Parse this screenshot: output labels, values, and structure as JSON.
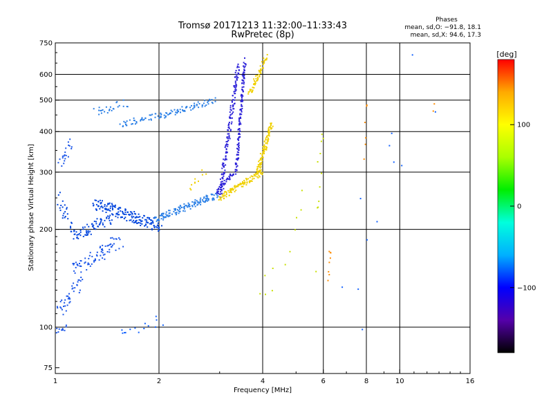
{
  "header": {
    "title": "Tromsø 20171213 11:32:00–11:33:43",
    "subtitle": "RwPretec (8p)"
  },
  "phases": {
    "heading": "Phases",
    "line_o": "mean, sd,O: −91.8, 18.1",
    "line_x": "mean, sd,X:  94.6, 17.3"
  },
  "chart_data": {
    "type": "scatter",
    "xlabel": "Frequency [MHz]",
    "ylabel": "Stationary phase Virtual Height [km]",
    "xscale": "log",
    "yscale": "log",
    "xlim": [
      1,
      16
    ],
    "ylim": [
      72,
      750
    ],
    "xticks": [
      1,
      2,
      4,
      6,
      8,
      10,
      16
    ],
    "xtick_labels": [
      "1",
      "2",
      "4",
      "6",
      "8",
      "10",
      "16"
    ],
    "x_gridlines": [
      2,
      4,
      6,
      8,
      10
    ],
    "yticks": [
      75,
      100,
      200,
      300,
      400,
      500,
      600,
      750
    ],
    "ytick_labels": [
      "75",
      "100",
      "200",
      "300",
      "400",
      "500",
      "600",
      "750"
    ],
    "y_gridlines": [
      100,
      200,
      300,
      400,
      500,
      600
    ],
    "grid": true,
    "colorbar": {
      "label": "[deg]",
      "range": [
        -180,
        180
      ],
      "ticks": [
        100,
        0,
        -100
      ],
      "tick_labels": [
        "100",
        "0",
        "−100"
      ],
      "colors": [
        "#000000",
        "#5500aa",
        "#0000ff",
        "#00b0ff",
        "#00ffdd",
        "#00ee00",
        "#aaff00",
        "#ffff00",
        "#ffaa00",
        "#ff0000"
      ]
    },
    "series": [
      {
        "color": "#0044dd",
        "segments": [
          {
            "f0": 1.12,
            "f1": 1.45,
            "h0": 190,
            "h1": 215,
            "n": 70,
            "jf": 0.03,
            "jh": 0.04
          },
          {
            "f0": 1.3,
            "f1": 2.0,
            "h0": 240,
            "h1": 205,
            "n": 170,
            "jf": 0.02,
            "jh": 0.04
          },
          {
            "f0": 1.02,
            "f1": 1.12,
            "h0": 250,
            "h1": 205,
            "n": 25,
            "jf": 0.02,
            "jh": 0.06
          }
        ]
      },
      {
        "color": "#1a55e8",
        "segments": [
          {
            "f0": 1.02,
            "f1": 1.18,
            "h0": 110,
            "h1": 140,
            "n": 40,
            "jf": 0.025,
            "jh": 0.05
          },
          {
            "f0": 1.12,
            "f1": 1.55,
            "h0": 150,
            "h1": 185,
            "n": 75,
            "jf": 0.03,
            "jh": 0.05
          },
          {
            "f0": 1.03,
            "f1": 1.12,
            "h0": 320,
            "h1": 370,
            "n": 20,
            "jf": 0.02,
            "jh": 0.04
          },
          {
            "f0": 1.0,
            "f1": 1.08,
            "h0": 97,
            "h1": 100,
            "n": 12,
            "jf": 0.01,
            "jh": 0.02
          }
        ]
      },
      {
        "color": "#2a7fe6",
        "segments": [
          {
            "f0": 1.95,
            "f1": 2.95,
            "h0": 215,
            "h1": 255,
            "n": 130,
            "jf": 0.015,
            "jh": 0.025
          },
          {
            "f0": 2.0,
            "f1": 2.9,
            "h0": 445,
            "h1": 500,
            "n": 70,
            "jf": 0.015,
            "jh": 0.02
          },
          {
            "f0": 1.55,
            "f1": 2.0,
            "h0": 420,
            "h1": 450,
            "n": 40,
            "jf": 0.02,
            "jh": 0.02
          },
          {
            "f0": 1.3,
            "f1": 1.6,
            "h0": 455,
            "h1": 490,
            "n": 25,
            "jf": 0.03,
            "jh": 0.03
          }
        ]
      },
      {
        "color": "#2a1fd8",
        "segments": [
          {
            "f0": 3.0,
            "f1": 3.4,
            "h0": 255,
            "h1": 640,
            "n": 150,
            "jf": 0.012,
            "jh": 0.02
          },
          {
            "f0": 3.35,
            "f1": 3.55,
            "h0": 300,
            "h1": 660,
            "n": 130,
            "jf": 0.008,
            "jh": 0.02
          },
          {
            "f0": 2.95,
            "f1": 3.3,
            "h0": 260,
            "h1": 300,
            "n": 45,
            "jf": 0.01,
            "jh": 0.02
          }
        ]
      },
      {
        "color": "#f0d000",
        "segments": [
          {
            "f0": 3.0,
            "f1": 4.0,
            "h0": 250,
            "h1": 300,
            "n": 110,
            "jf": 0.012,
            "jh": 0.02
          },
          {
            "f0": 3.85,
            "f1": 4.25,
            "h0": 300,
            "h1": 420,
            "n": 95,
            "jf": 0.01,
            "jh": 0.025
          },
          {
            "f0": 3.65,
            "f1": 4.1,
            "h0": 520,
            "h1": 680,
            "n": 60,
            "jf": 0.01,
            "jh": 0.02
          },
          {
            "f0": 2.45,
            "f1": 2.7,
            "h0": 265,
            "h1": 300,
            "n": 10,
            "jf": 0.02,
            "jh": 0.03
          }
        ]
      },
      {
        "color": "#ff8c00",
        "segments": [
          {
            "f0": 6.2,
            "f1": 6.3,
            "h0": 140,
            "h1": 175,
            "n": 8,
            "jf": 0.005,
            "jh": 0.05
          },
          {
            "f0": 7.9,
            "f1": 8.0,
            "h0": 320,
            "h1": 500,
            "n": 6,
            "jf": 0.005,
            "jh": 0.05
          },
          {
            "f0": 12.5,
            "f1": 12.6,
            "h0": 470,
            "h1": 490,
            "n": 2,
            "jf": 0.005,
            "jh": 0.02
          }
        ]
      },
      {
        "color": "#c8e000",
        "segments": [
          {
            "f0": 4.0,
            "f1": 5.9,
            "h0": 100,
            "h1": 350,
            "n": 14,
            "jf": 0.1,
            "jh": 0.3
          },
          {
            "f0": 5.7,
            "f1": 6.0,
            "h0": 180,
            "h1": 360,
            "n": 8,
            "jf": 0.01,
            "jh": 0.2
          }
        ]
      },
      {
        "color": "#1060ff",
        "segments": [
          {
            "f0": 1.5,
            "f1": 2.0,
            "h0": 95,
            "h1": 105,
            "n": 14,
            "jf": 0.05,
            "jh": 0.03
          },
          {
            "f0": 6.5,
            "f1": 12.5,
            "h0": 80,
            "h1": 590,
            "n": 14,
            "jf": 0.2,
            "jh": 0.4
          }
        ]
      }
    ]
  }
}
